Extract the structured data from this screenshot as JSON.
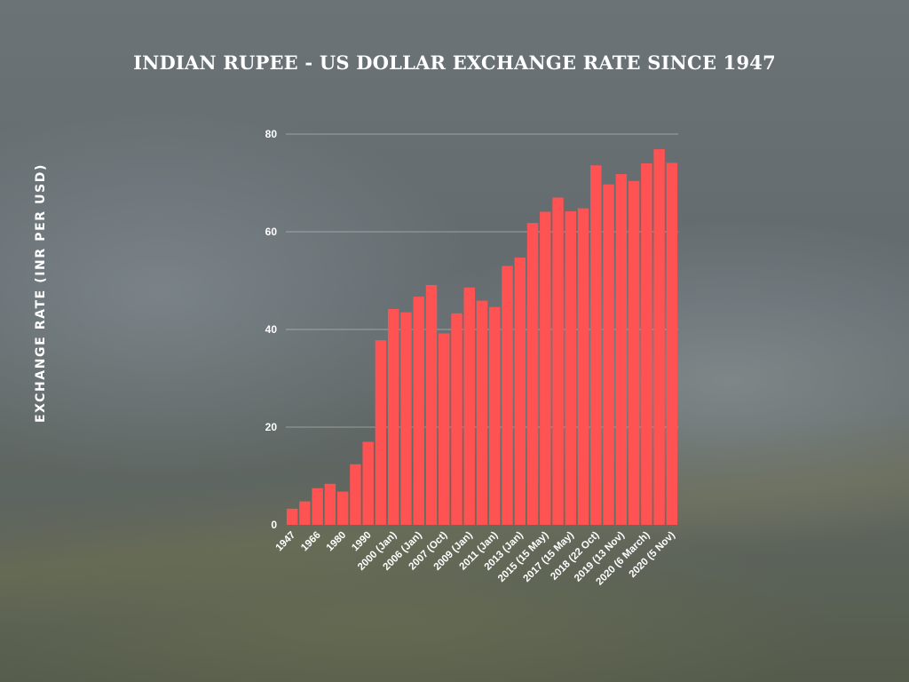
{
  "chart_data": {
    "type": "bar",
    "title": "INDIAN RUPEE - US DOLLAR EXCHANGE RATE SINCE 1947",
    "xlabel": "",
    "ylabel": "EXCHANGE RATE (INR PER USD)",
    "ylim": [
      0,
      80
    ],
    "yticks": [
      0,
      20,
      40,
      60,
      80
    ],
    "grid": true,
    "bar_color": "#ff5252",
    "categories": [
      "1947",
      "",
      "1966",
      "",
      "1980",
      "",
      "1990",
      "",
      "2000 (Jan)",
      "",
      "2006 (Jan)",
      "",
      "2007 (Oct)",
      "",
      "2009 (Jan)",
      "",
      "2011 (Jan)",
      "",
      "2013 (Jan)",
      "",
      "2015 (15 May)",
      "",
      "2017 (15 May)",
      "",
      "2018 (22 Oct)",
      "",
      "2019 (13 Nov)",
      "",
      "2020 (6 March)",
      "",
      "2020 (5 Nov)"
    ],
    "values": [
      3.3,
      4.8,
      7.5,
      8.4,
      6.8,
      12.4,
      17.0,
      37.8,
      44.2,
      43.5,
      46.7,
      49.1,
      39.2,
      43.3,
      48.6,
      45.9,
      44.6,
      53.0,
      54.7,
      61.8,
      64.1,
      67.0,
      64.2,
      64.8,
      73.6,
      69.7,
      71.8,
      70.4,
      74.0,
      76.9,
      74.1
    ]
  }
}
